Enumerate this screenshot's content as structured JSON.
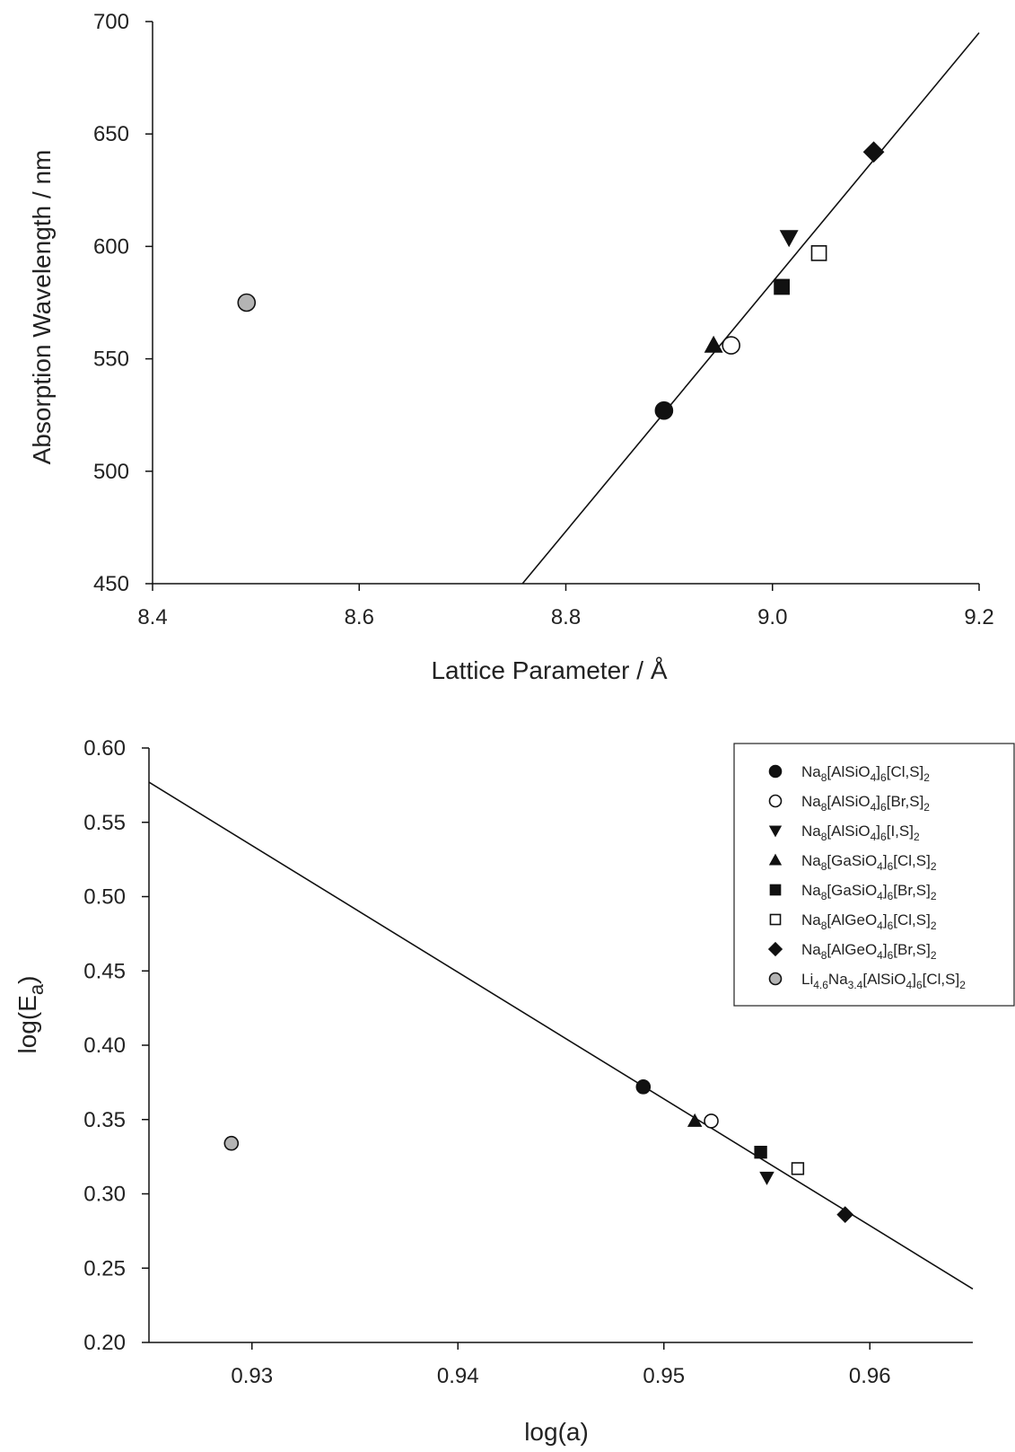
{
  "chart_data": [
    {
      "type": "scatter",
      "xlabel": "Lattice Parameter / Å",
      "ylabel": "Absorption Wavelength / nm",
      "xlim": [
        8.4,
        9.2
      ],
      "ylim": [
        450,
        700
      ],
      "xticks": [
        "8.4",
        "8.6",
        "8.8",
        "9.0",
        "9.2"
      ],
      "yticks": [
        "450",
        "500",
        "550",
        "600",
        "650",
        "700"
      ],
      "grid": false,
      "fit_line": {
        "x": [
          8.758,
          9.2
        ],
        "y": [
          450,
          695
        ]
      },
      "points": [
        {
          "series": "s1",
          "x": 8.895,
          "y": 527
        },
        {
          "series": "s2",
          "x": 8.96,
          "y": 556
        },
        {
          "series": "s3",
          "x": 9.016,
          "y": 604
        },
        {
          "series": "s4",
          "x": 8.943,
          "y": 556
        },
        {
          "series": "s5",
          "x": 9.009,
          "y": 582
        },
        {
          "series": "s6",
          "x": 9.045,
          "y": 597
        },
        {
          "series": "s7",
          "x": 9.098,
          "y": 642
        },
        {
          "series": "s8",
          "x": 8.491,
          "y": 575
        }
      ]
    },
    {
      "type": "scatter",
      "xlabel": "log(a)",
      "ylabel": "log(Ea)",
      "ylabel_main": "log(E",
      "ylabel_sub": "a",
      "ylabel_close": ")",
      "xlim": [
        0.925,
        0.965
      ],
      "ylim": [
        0.2,
        0.6
      ],
      "xticks": [
        "0.93",
        "0.94",
        "0.95",
        "0.96"
      ],
      "xtick_values": [
        0.93,
        0.94,
        0.95,
        0.96
      ],
      "yticks": [
        "0.20",
        "0.25",
        "0.30",
        "0.35",
        "0.40",
        "0.45",
        "0.50",
        "0.55",
        "0.60"
      ],
      "grid": false,
      "fit_line": {
        "x": [
          0.925,
          0.965
        ],
        "y": [
          0.577,
          0.236
        ]
      },
      "points": [
        {
          "series": "s1",
          "x": 0.949,
          "y": 0.372
        },
        {
          "series": "s2",
          "x": 0.9523,
          "y": 0.349
        },
        {
          "series": "s3",
          "x": 0.955,
          "y": 0.311
        },
        {
          "series": "s4",
          "x": 0.9515,
          "y": 0.349
        },
        {
          "series": "s5",
          "x": 0.9547,
          "y": 0.328
        },
        {
          "series": "s6",
          "x": 0.9565,
          "y": 0.317
        },
        {
          "series": "s7",
          "x": 0.9588,
          "y": 0.286
        },
        {
          "series": "s8",
          "x": 0.929,
          "y": 0.334
        }
      ],
      "legend_position": "top-right"
    }
  ],
  "legend": {
    "entries": [
      {
        "series": "s1",
        "marker": "circle-filled-black",
        "parts": [
          [
            "Na",
            ""
          ],
          [
            "8",
            "sub"
          ],
          [
            "[AlSiO",
            ""
          ],
          [
            "4",
            "sub"
          ],
          [
            "]",
            ""
          ],
          [
            "6",
            "sub"
          ],
          [
            "[Cl,S]",
            ""
          ],
          [
            "2",
            "sub"
          ]
        ]
      },
      {
        "series": "s2",
        "marker": "circle-open",
        "parts": [
          [
            "Na",
            ""
          ],
          [
            "8",
            "sub"
          ],
          [
            "[AlSiO",
            ""
          ],
          [
            "4",
            "sub"
          ],
          [
            "]",
            ""
          ],
          [
            "6",
            "sub"
          ],
          [
            "[Br,S]",
            ""
          ],
          [
            "2",
            "sub"
          ]
        ]
      },
      {
        "series": "s3",
        "marker": "triangle-down-filled",
        "parts": [
          [
            "Na",
            ""
          ],
          [
            "8",
            "sub"
          ],
          [
            "[AlSiO",
            ""
          ],
          [
            "4",
            "sub"
          ],
          [
            "]",
            ""
          ],
          [
            "6",
            "sub"
          ],
          [
            "[I,S]",
            ""
          ],
          [
            "2",
            "sub"
          ]
        ]
      },
      {
        "series": "s4",
        "marker": "triangle-up-filled",
        "parts": [
          [
            "Na",
            ""
          ],
          [
            "8",
            "sub"
          ],
          [
            "[GaSiO",
            ""
          ],
          [
            "4",
            "sub"
          ],
          [
            "]",
            ""
          ],
          [
            "6",
            "sub"
          ],
          [
            "[Cl,S]",
            ""
          ],
          [
            "2",
            "sub"
          ]
        ]
      },
      {
        "series": "s5",
        "marker": "square-filled",
        "parts": [
          [
            "Na",
            ""
          ],
          [
            "8",
            "sub"
          ],
          [
            "[GaSiO",
            ""
          ],
          [
            "4",
            "sub"
          ],
          [
            "]",
            ""
          ],
          [
            "6",
            "sub"
          ],
          [
            "[Br,S]",
            ""
          ],
          [
            "2",
            "sub"
          ]
        ]
      },
      {
        "series": "s6",
        "marker": "square-open",
        "parts": [
          [
            "Na",
            ""
          ],
          [
            "8",
            "sub"
          ],
          [
            "[AlGeO",
            ""
          ],
          [
            "4",
            "sub"
          ],
          [
            "]",
            ""
          ],
          [
            "6",
            "sub"
          ],
          [
            "[Cl,S]",
            ""
          ],
          [
            "2",
            "sub"
          ]
        ]
      },
      {
        "series": "s7",
        "marker": "diamond-filled",
        "parts": [
          [
            "Na",
            ""
          ],
          [
            "8",
            "sub"
          ],
          [
            "[AlGeO",
            ""
          ],
          [
            "4",
            "sub"
          ],
          [
            "]",
            ""
          ],
          [
            "6",
            "sub"
          ],
          [
            "[Br,S]",
            ""
          ],
          [
            "2",
            "sub"
          ]
        ]
      },
      {
        "series": "s8",
        "marker": "circle-filled-gray",
        "parts": [
          [
            "Li",
            ""
          ],
          [
            "4.6",
            "sub"
          ],
          [
            "Na",
            ""
          ],
          [
            "3.4",
            "sub"
          ],
          [
            "[AlSiO",
            ""
          ],
          [
            "4",
            "sub"
          ],
          [
            "]",
            ""
          ],
          [
            "6",
            "sub"
          ],
          [
            "[Cl,S]",
            ""
          ],
          [
            "2",
            "sub"
          ]
        ]
      }
    ]
  },
  "colors": {
    "ink": "#111111",
    "gray_marker": "#b4b4b4",
    "open_fill": "#ffffff"
  }
}
